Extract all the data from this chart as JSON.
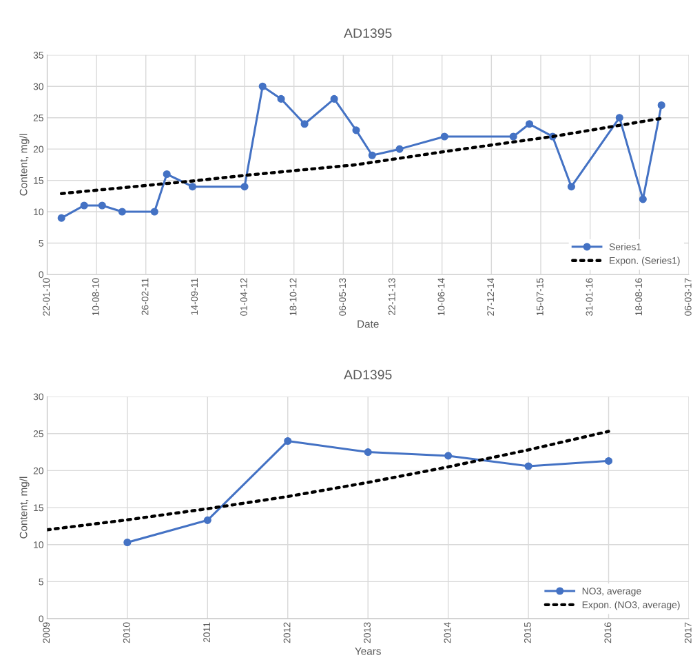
{
  "chart_data": [
    {
      "type": "line",
      "title": "AD1395",
      "xlabel": "Date",
      "ylabel": "Content, mg/l",
      "xlim": [
        "2010-01-22",
        "2017-03-06"
      ],
      "xticks": [
        {
          "value": "2010-01-22",
          "label": "22-01-10"
        },
        {
          "value": "2010-08-10",
          "label": "10-08-10"
        },
        {
          "value": "2011-02-26",
          "label": "26-02-11"
        },
        {
          "value": "2011-09-14",
          "label": "14-09-11"
        },
        {
          "value": "2012-04-01",
          "label": "01-04-12"
        },
        {
          "value": "2012-10-18",
          "label": "18-10-12"
        },
        {
          "value": "2013-05-06",
          "label": "06-05-13"
        },
        {
          "value": "2013-11-22",
          "label": "22-11-13"
        },
        {
          "value": "2014-06-10",
          "label": "10-06-14"
        },
        {
          "value": "2014-12-27",
          "label": "27-12-14"
        },
        {
          "value": "2015-07-15",
          "label": "15-07-15"
        },
        {
          "value": "2016-01-31",
          "label": "31-01-16"
        },
        {
          "value": "2016-08-18",
          "label": "18-08-16"
        },
        {
          "value": "2017-03-06",
          "label": "06-03-17"
        }
      ],
      "ylim": [
        0,
        35
      ],
      "yticks": [
        0,
        5,
        10,
        15,
        20,
        25,
        30,
        35
      ],
      "grid": true,
      "legend": "bottom right",
      "series": [
        {
          "name": "Series1",
          "color": "#4472c4",
          "marker": "circle",
          "line_style": "solid",
          "x": [
            "2010-03-21",
            "2010-06-21",
            "2010-09-02",
            "2010-11-22",
            "2011-04-02",
            "2011-05-22",
            "2011-09-03",
            "2012-04-01",
            "2012-06-13",
            "2012-08-27",
            "2012-11-30",
            "2013-03-30",
            "2013-06-27",
            "2013-08-31",
            "2013-12-20",
            "2014-06-20",
            "2015-03-26",
            "2015-05-30",
            "2015-09-01",
            "2015-11-16",
            "2016-05-29",
            "2016-09-01",
            "2016-11-15"
          ],
          "values": [
            9,
            11,
            11,
            10,
            10,
            16,
            14,
            14,
            30,
            28,
            24,
            28,
            23,
            19,
            20,
            22,
            22,
            24,
            22,
            14,
            25,
            12,
            27
          ]
        },
        {
          "name": "Expon. (Series1)",
          "color": "#000000",
          "marker": "none",
          "line_style": "dotted",
          "x": [
            "2010-03-21",
            "2011-09-03",
            "2012-04-01",
            "2013-06-27",
            "2014-06-20",
            "2015-09-01",
            "2016-11-15"
          ],
          "values": [
            12.9,
            14.9,
            15.8,
            17.5,
            19.6,
            22.0,
            24.9
          ]
        }
      ]
    },
    {
      "type": "line",
      "title": "AD1395",
      "xlabel": "Years",
      "ylabel": "Content, mg/l",
      "xlim": [
        2009,
        2017
      ],
      "xticks": [
        2009,
        2010,
        2011,
        2012,
        2013,
        2014,
        2015,
        2016,
        2017
      ],
      "ylim": [
        0,
        30
      ],
      "yticks": [
        0,
        5,
        10,
        15,
        20,
        25,
        30
      ],
      "grid": true,
      "legend": "bottom right",
      "series": [
        {
          "name": "NO3, average",
          "color": "#4472c4",
          "marker": "circle",
          "line_style": "solid",
          "x": [
            2010,
            2011,
            2012,
            2013,
            2014,
            2015,
            2016
          ],
          "values": [
            10.3,
            13.3,
            24,
            22.5,
            22,
            20.6,
            21.3
          ]
        },
        {
          "name": "Expon. (NO3, average)",
          "color": "#000000",
          "marker": "none",
          "line_style": "dotted",
          "x": [
            2009,
            2010,
            2011,
            2012,
            2013,
            2014,
            2015,
            2016
          ],
          "values": [
            12.0,
            13.35,
            14.85,
            16.5,
            18.4,
            20.5,
            22.8,
            25.3
          ]
        }
      ]
    }
  ]
}
